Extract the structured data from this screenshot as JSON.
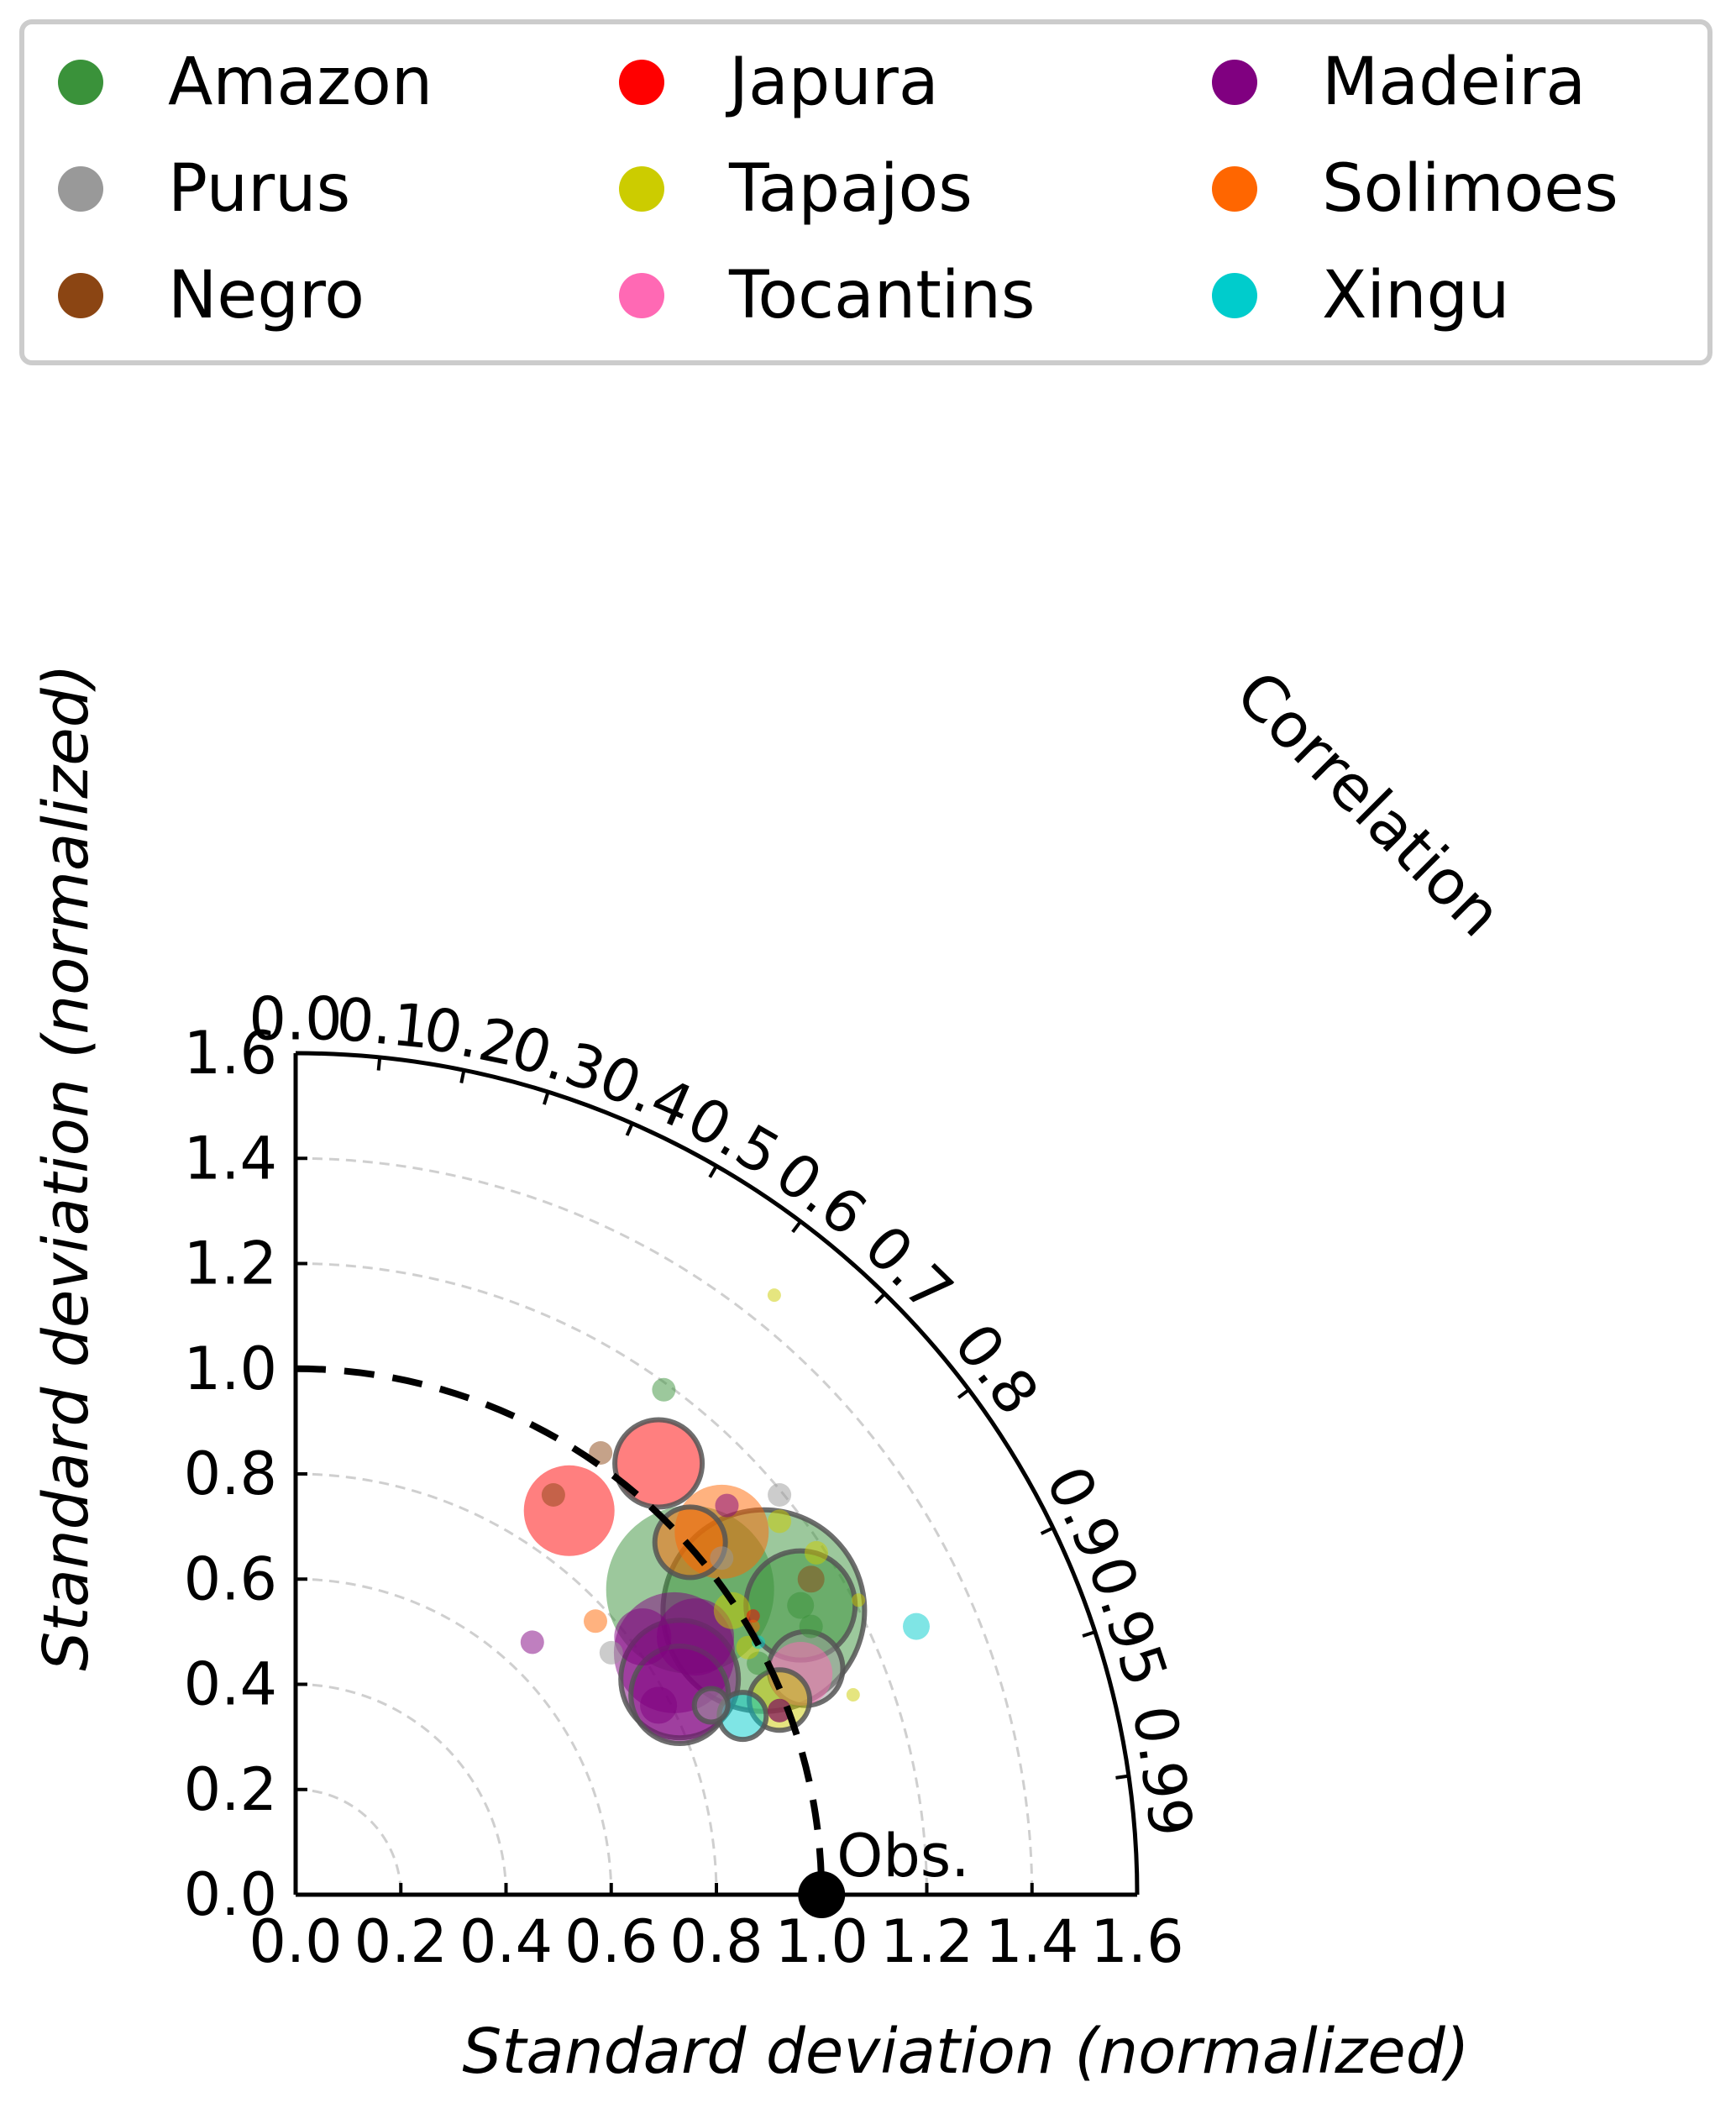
{
  "chart_data": {
    "type": "scatter",
    "subtype": "taylor-diagram",
    "title": "",
    "xlabel": "Standard deviation (normalized)",
    "ylabel": "Standard deviation (normalized)",
    "angular_label": "Correlation",
    "xlim": [
      0,
      1.6
    ],
    "ylim": [
      0,
      1.6
    ],
    "x_ticks": [
      "0.0",
      "0.2",
      "0.4",
      "0.6",
      "0.8",
      "1.0",
      "1.2",
      "1.4",
      "1.6"
    ],
    "y_ticks": [
      "0.0",
      "0.2",
      "0.4",
      "0.6",
      "0.8",
      "1.0",
      "1.2",
      "1.4",
      "1.6"
    ],
    "correlation_ticks": [
      "0.0",
      "0.1",
      "0.2",
      "0.3",
      "0.4",
      "0.5",
      "0.6",
      "0.7",
      "0.8",
      "0.9",
      "0.95",
      "0.99"
    ],
    "grid_radii": [
      0.2,
      0.4,
      0.6,
      0.8,
      1.2,
      1.4
    ],
    "reference": {
      "label": "Obs.",
      "std": 1.0
    },
    "legend": {
      "placement": "top",
      "entries": [
        {
          "name": "Amazon",
          "color": "#3a923a"
        },
        {
          "name": "Purus",
          "color": "#999999"
        },
        {
          "name": "Negro",
          "color": "#8b4513"
        },
        {
          "name": "Japura",
          "color": "#ff0000"
        },
        {
          "name": "Tapajos",
          "color": "#cccc00"
        },
        {
          "name": "Tocantins",
          "color": "#ff69b4"
        },
        {
          "name": "Madeira",
          "color": "#800080"
        },
        {
          "name": "Solimoes",
          "color": "#ff6600"
        },
        {
          "name": "Xingu",
          "color": "#00cccc"
        }
      ]
    },
    "points": [
      {
        "series": "Amazon",
        "x": 0.7,
        "y": 0.96,
        "size": 14,
        "outlined": false
      },
      {
        "series": "Amazon",
        "x": 0.75,
        "y": 0.58,
        "size": 100,
        "outlined": false
      },
      {
        "series": "Amazon",
        "x": 0.89,
        "y": 0.54,
        "size": 120,
        "outlined": true
      },
      {
        "series": "Amazon",
        "x": 0.96,
        "y": 0.55,
        "size": 65,
        "outlined": true
      },
      {
        "series": "Amazon",
        "x": 0.96,
        "y": 0.55,
        "size": 16,
        "outlined": false
      },
      {
        "series": "Amazon",
        "x": 0.98,
        "y": 0.51,
        "size": 14,
        "outlined": false
      },
      {
        "series": "Amazon",
        "x": 0.88,
        "y": 0.44,
        "size": 14,
        "outlined": false
      },
      {
        "series": "Purus",
        "x": 0.92,
        "y": 0.76,
        "size": 14,
        "outlined": false
      },
      {
        "series": "Purus",
        "x": 0.6,
        "y": 0.46,
        "size": 14,
        "outlined": false
      },
      {
        "series": "Purus",
        "x": 0.97,
        "y": 0.43,
        "size": 44,
        "outlined": true
      },
      {
        "series": "Purus",
        "x": 0.79,
        "y": 0.36,
        "size": 20,
        "outlined": true
      },
      {
        "series": "Purus",
        "x": 0.81,
        "y": 0.64,
        "size": 14,
        "outlined": false
      },
      {
        "series": "Negro",
        "x": 0.49,
        "y": 0.76,
        "size": 14,
        "outlined": false
      },
      {
        "series": "Negro",
        "x": 0.58,
        "y": 0.84,
        "size": 14,
        "outlined": false
      },
      {
        "series": "Negro",
        "x": 0.98,
        "y": 0.6,
        "size": 16,
        "outlined": false
      },
      {
        "series": "Negro",
        "x": 0.92,
        "y": 0.35,
        "size": 14,
        "outlined": false
      },
      {
        "series": "Japura",
        "x": 0.52,
        "y": 0.73,
        "size": 54,
        "outlined": false
      },
      {
        "series": "Japura",
        "x": 0.69,
        "y": 0.82,
        "size": 52,
        "outlined": true
      },
      {
        "series": "Japura",
        "x": 0.87,
        "y": 0.53,
        "size": 8,
        "outlined": false
      },
      {
        "series": "Tapajos",
        "x": 0.91,
        "y": 1.14,
        "size": 8,
        "outlined": false
      },
      {
        "series": "Tapajos",
        "x": 0.92,
        "y": 0.71,
        "size": 14,
        "outlined": false
      },
      {
        "series": "Tapajos",
        "x": 0.99,
        "y": 0.65,
        "size": 14,
        "outlined": false
      },
      {
        "series": "Tapajos",
        "x": 1.07,
        "y": 0.56,
        "size": 8,
        "outlined": false
      },
      {
        "series": "Tapajos",
        "x": 1.06,
        "y": 0.38,
        "size": 8,
        "outlined": false
      },
      {
        "series": "Tapajos",
        "x": 0.92,
        "y": 0.37,
        "size": 36,
        "outlined": true
      },
      {
        "series": "Tapajos",
        "x": 0.83,
        "y": 0.54,
        "size": 22,
        "outlined": false
      },
      {
        "series": "Tapajos",
        "x": 0.86,
        "y": 0.47,
        "size": 14,
        "outlined": false
      },
      {
        "series": "Tocantins",
        "x": 0.96,
        "y": 0.42,
        "size": 38,
        "outlined": false
      },
      {
        "series": "Madeira",
        "x": 0.45,
        "y": 0.48,
        "size": 14,
        "outlined": false
      },
      {
        "series": "Madeira",
        "x": 0.66,
        "y": 0.49,
        "size": 34,
        "outlined": false
      },
      {
        "series": "Madeira",
        "x": 0.82,
        "y": 0.74,
        "size": 14,
        "outlined": false
      },
      {
        "series": "Madeira",
        "x": 0.76,
        "y": 0.49,
        "size": 46,
        "outlined": false
      },
      {
        "series": "Madeira",
        "x": 0.72,
        "y": 0.46,
        "size": 72,
        "outlined": false
      },
      {
        "series": "Madeira",
        "x": 0.73,
        "y": 0.41,
        "size": 70,
        "outlined": true
      },
      {
        "series": "Madeira",
        "x": 0.73,
        "y": 0.38,
        "size": 58,
        "outlined": true
      },
      {
        "series": "Madeira",
        "x": 0.69,
        "y": 0.36,
        "size": 22,
        "outlined": false
      },
      {
        "series": "Madeira",
        "x": 0.92,
        "y": 0.35,
        "size": 14,
        "outlined": false
      },
      {
        "series": "Solimoes",
        "x": 0.57,
        "y": 0.52,
        "size": 14,
        "outlined": false
      },
      {
        "series": "Solimoes",
        "x": 0.81,
        "y": 0.69,
        "size": 56,
        "outlined": false
      },
      {
        "series": "Solimoes",
        "x": 0.75,
        "y": 0.67,
        "size": 42,
        "outlined": true
      },
      {
        "series": "Solimoes",
        "x": 0.87,
        "y": 0.51,
        "size": 8,
        "outlined": false
      },
      {
        "series": "Xingu",
        "x": 1.18,
        "y": 0.51,
        "size": 16,
        "outlined": false
      },
      {
        "series": "Xingu",
        "x": 0.85,
        "y": 0.34,
        "size": 28,
        "outlined": true
      },
      {
        "series": "Xingu",
        "x": 0.88,
        "y": 0.48,
        "size": 8,
        "outlined": false
      }
    ]
  }
}
